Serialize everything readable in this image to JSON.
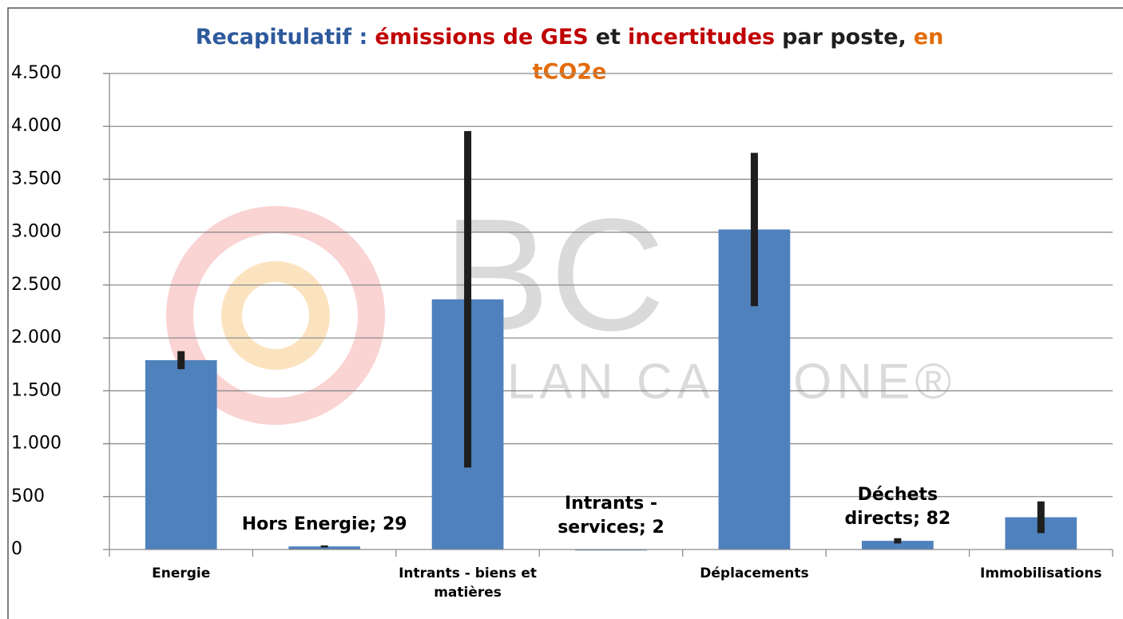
{
  "chart_data": {
    "type": "bar",
    "title_parts": [
      {
        "text": "Recapitulatif :",
        "color": "#2e5a9c"
      },
      {
        "text": "émissions de GES",
        "color": "#c00000"
      },
      {
        "text": "et",
        "color": "#1f1f1f"
      },
      {
        "text": "incertitudes",
        "color": "#c00000"
      },
      {
        "text": "par poste,",
        "color": "#1f1f1f"
      },
      {
        "text": "en",
        "color": "#e46c0a"
      },
      {
        "text": "tCO2e",
        "color": "#e46c0a"
      }
    ],
    "watermark": [
      "BC",
      "LAN CARBONE®"
    ],
    "categories": [
      "Energie",
      null,
      "Intrants - biens et matières",
      null,
      "Déplacements",
      null,
      "Immobilisations"
    ],
    "values": [
      1790,
      29,
      2365,
      2,
      3025,
      82,
      305
    ],
    "errors": [
      85,
      10,
      1590,
      1,
      725,
      25,
      150
    ],
    "value_labels": [
      null,
      "Hors Energie; 29",
      null,
      "Intrants - services; 2",
      null,
      "Déchets directs; 82",
      null
    ],
    "color": "#4f81bd",
    "error_color": "#1e1e1e",
    "ylim": [
      0,
      4500
    ],
    "yticks": [
      0,
      500,
      {
        "value": 1000,
        "label": "1.000"
      },
      {
        "value": 1500,
        "label": "1.500"
      },
      {
        "value": 2000,
        "label": "2.000"
      },
      {
        "value": 2500,
        "label": "2.500"
      },
      {
        "value": 3000,
        "label": "3.000"
      },
      {
        "value": 3500,
        "label": "3.500"
      },
      {
        "value": 4000,
        "label": "4.000"
      },
      {
        "value": 4500,
        "label": "4.500"
      }
    ],
    "grid": true
  }
}
